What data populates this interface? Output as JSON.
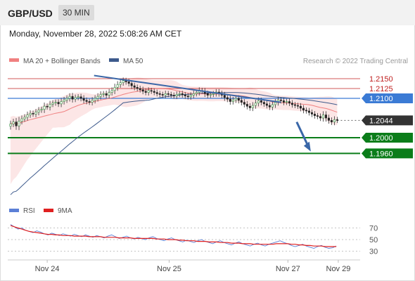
{
  "header": {
    "symbol": "GBP/USD",
    "timeframe": "30 MIN"
  },
  "datetime": "Monday, November 28, 2022 5:08:26 AM CET",
  "legend": {
    "ma20": "MA 20 + Bollinger Bands",
    "ma50": "MA 50",
    "credit": "Research © 2022 Trading Central"
  },
  "colors": {
    "ma20": "#f08080",
    "band": "#fbe0e0",
    "ma50": "#3d5a8c",
    "resistance": "#3b7bd5",
    "support": "#0b7d1a",
    "level_red": "#c02020",
    "last": "#333333",
    "arrow": "#3a67a8",
    "rsi": "#5b7fd6",
    "rsi_ma": "#e02020"
  },
  "chart_data": [
    {
      "type": "candlestick",
      "title": "GBP/USD 30 MIN",
      "ylim": [
        1.185,
        1.2175
      ],
      "x_ticks": [
        "Nov 24",
        "Nov 25",
        "Nov 27",
        "Nov 29"
      ],
      "levels": [
        {
          "value": 1.215,
          "label": "1.2150",
          "kind": "red"
        },
        {
          "value": 1.2125,
          "label": "1.2125",
          "kind": "red"
        },
        {
          "value": 1.21,
          "label": "1.2100",
          "kind": "resistance"
        },
        {
          "value": 1.2044,
          "label": "1.2044",
          "kind": "last"
        },
        {
          "value": 1.2,
          "label": "1.2000",
          "kind": "support"
        },
        {
          "value": 1.196,
          "label": "1.1960",
          "kind": "support"
        }
      ],
      "trendline": [
        [
          0.245,
          1.2158
        ],
        [
          0.775,
          1.209
        ]
      ],
      "forecast_arrow": [
        [
          0.82,
          1.204
        ],
        [
          0.86,
          1.1965
        ]
      ],
      "closes": [
        1.2035,
        1.204,
        1.203,
        1.2042,
        1.2048,
        1.2052,
        1.2058,
        1.2062,
        1.206,
        1.2065,
        1.207,
        1.2072,
        1.208,
        1.2078,
        1.2085,
        1.2088,
        1.209,
        1.2086,
        1.2092,
        1.2096,
        1.21,
        1.2105,
        1.2098,
        1.2102,
        1.2104,
        1.21,
        1.2095,
        1.2092,
        1.209,
        1.2095,
        1.21,
        1.2105,
        1.211,
        1.2112,
        1.2108,
        1.2115,
        1.212,
        1.2128,
        1.2135,
        1.214,
        1.2145,
        1.2142,
        1.2138,
        1.2132,
        1.2128,
        1.2125,
        1.2122,
        1.2118,
        1.2115,
        1.212,
        1.2118,
        1.2115,
        1.2112,
        1.211,
        1.2108,
        1.2112,
        1.211,
        1.2108,
        1.2106,
        1.211,
        1.2112,
        1.2109,
        1.2106,
        1.2104,
        1.2108,
        1.2112,
        1.2115,
        1.212,
        1.2118,
        1.2112,
        1.2108,
        1.211,
        1.2112,
        1.2116,
        1.2112,
        1.2108,
        1.2102,
        1.2098,
        1.2092,
        1.2096,
        1.21,
        1.2095,
        1.209,
        1.2085,
        1.208,
        1.2076,
        1.2082,
        1.2088,
        1.2094,
        1.209,
        1.2086,
        1.2082,
        1.2078,
        1.2084,
        1.209,
        1.2096,
        1.2094,
        1.209,
        1.2092,
        1.2088,
        1.2084,
        1.2082,
        1.208,
        1.2075,
        1.207,
        1.2068,
        1.2064,
        1.206,
        1.2056,
        1.2054,
        1.205,
        1.2058,
        1.205,
        1.2044,
        1.204,
        1.2046,
        1.2044
      ],
      "gaps": [
        [
          0.8,
          1.2044
        ],
        [
          0.88,
          1.2044
        ]
      ]
    },
    {
      "type": "line",
      "title": "RSI",
      "ylim": [
        20,
        85
      ],
      "y_ticks": [
        70,
        50,
        30
      ],
      "series": [
        {
          "name": "RSI",
          "values": [
            76,
            72,
            68,
            70,
            66,
            64,
            62,
            65,
            63,
            60,
            58,
            61,
            59,
            57,
            60,
            58,
            56,
            59,
            57,
            55,
            58,
            56,
            54,
            57,
            55,
            53,
            56,
            58,
            55,
            52,
            54,
            56,
            53,
            51,
            54,
            52,
            50,
            53,
            55,
            52,
            50,
            48,
            51,
            53,
            50,
            48,
            46,
            49,
            47,
            45,
            48,
            50,
            47,
            45,
            43,
            46,
            48,
            45,
            43,
            41,
            44,
            46,
            43,
            41,
            39,
            42,
            44,
            41,
            39,
            42,
            44,
            46,
            48,
            45,
            43,
            40,
            38,
            40,
            42,
            39,
            37,
            35,
            38,
            40,
            37,
            35,
            36,
            39
          ]
        },
        {
          "name": "9MA",
          "values": [
            74,
            72,
            70,
            68,
            66,
            64,
            63,
            62,
            61,
            60,
            59,
            59,
            58,
            58,
            57,
            57,
            57,
            56,
            56,
            56,
            56,
            55,
            55,
            55,
            55,
            54,
            54,
            54,
            54,
            53,
            53,
            53,
            53,
            52,
            52,
            52,
            52,
            52,
            52,
            51,
            51,
            51,
            50,
            50,
            50,
            49,
            49,
            48,
            48,
            48,
            47,
            47,
            47,
            46,
            46,
            46,
            45,
            45,
            45,
            44,
            44,
            44,
            43,
            43,
            43,
            42,
            42,
            42,
            42,
            42,
            42,
            43,
            43,
            43,
            43,
            42,
            42,
            41,
            41,
            40,
            40,
            39,
            39,
            39,
            38,
            38,
            38,
            38
          ]
        }
      ]
    }
  ]
}
